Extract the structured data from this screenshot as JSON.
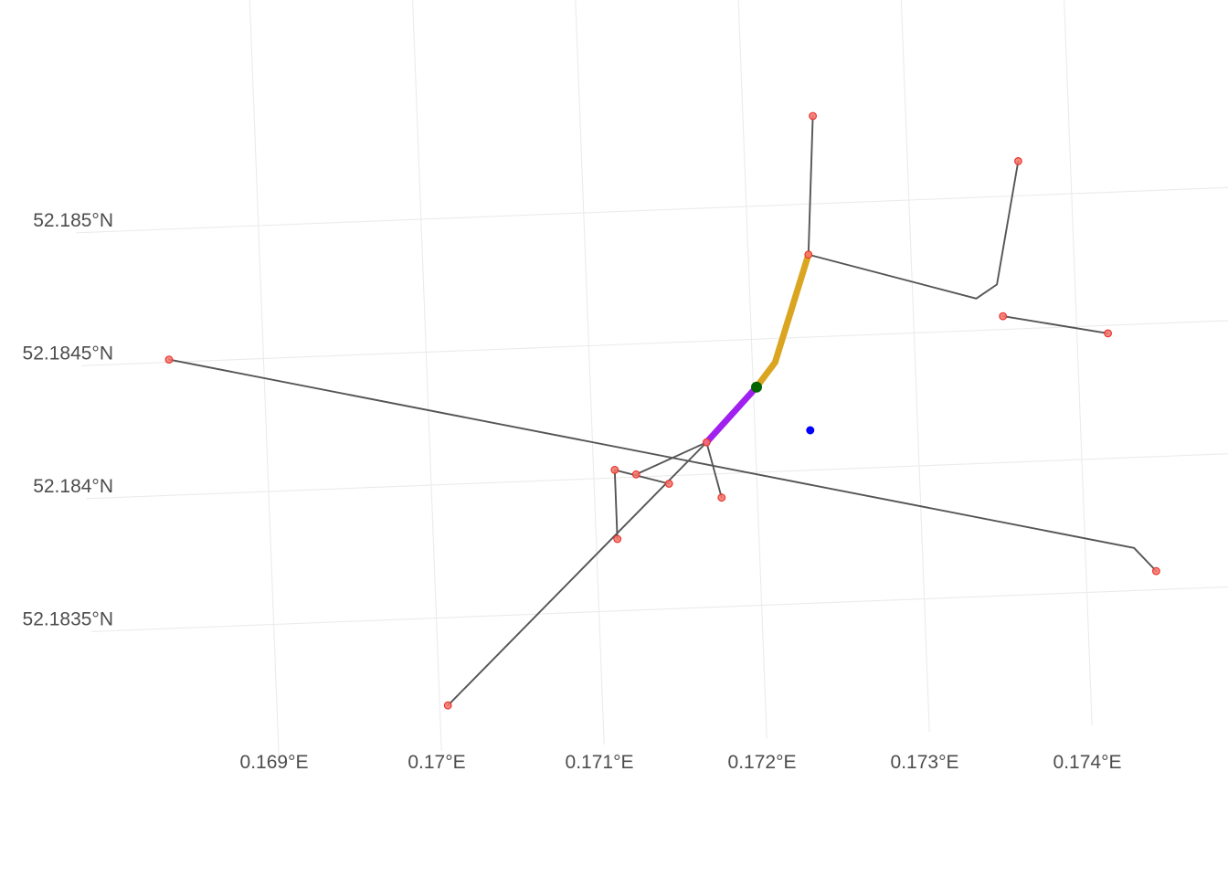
{
  "chart_data": {
    "type": "map",
    "x_axis": {
      "tick_labels": [
        "0.169°E",
        "0.17°E",
        "0.171°E",
        "0.172°E",
        "0.173°E",
        "0.174°E"
      ],
      "tick_values": [
        0.169,
        0.17,
        0.171,
        0.172,
        0.173,
        0.174
      ],
      "range": [
        0.1682,
        0.1748
      ]
    },
    "y_axis": {
      "tick_labels": [
        "52.1835°N",
        "52.184°N",
        "52.1845°N",
        "52.185°N"
      ],
      "tick_values": [
        52.1835,
        52.184,
        52.1845,
        52.185
      ],
      "range": [
        52.1829,
        52.1857
      ]
    },
    "grid": true,
    "graticule_rotation_deg": -2.2,
    "colors": {
      "edge": "#555555",
      "node_fill": "#f8766d",
      "node_stroke": "#e8332a",
      "route_purple": "#a020f0",
      "route_gold": "#daa520",
      "start_point": "#006400",
      "query_point": "#0000ff",
      "grid": "#ebebeb"
    },
    "edges": [
      [
        [
          0.16842,
          52.18451
        ],
        [
          0.1743,
          52.18366
        ],
        [
          0.17443,
          52.18357
        ]
      ],
      [
        [
          0.17005,
          52.18317
        ],
        [
          0.1717,
          52.18412
        ]
      ],
      [
        [
          0.17113,
          52.18377
        ],
        [
          0.17113,
          52.18403
        ]
      ],
      [
        [
          0.17113,
          52.18403
        ],
        [
          0.17146,
          52.18397
        ]
      ],
      [
        [
          0.17126,
          52.18401
        ],
        [
          0.1717,
          52.18412
        ]
      ],
      [
        [
          0.1717,
          52.18412
        ],
        [
          0.17178,
          52.18391
        ]
      ],
      [
        [
          0.1717,
          52.18412
        ],
        [
          0.17202,
          52.18432
        ],
        [
          0.17214,
          52.18441
        ],
        [
          0.17237,
          52.18481
        ]
      ],
      [
        [
          0.17237,
          52.18481
        ],
        [
          0.17243,
          52.18533
        ]
      ],
      [
        [
          0.17237,
          52.18481
        ],
        [
          0.17339,
          52.18462
        ],
        [
          0.17352,
          52.18467
        ],
        [
          0.17368,
          52.18513
        ]
      ],
      [
        [
          0.17355,
          52.18455
        ],
        [
          0.17419,
          52.18447
        ]
      ]
    ],
    "route_segments": [
      {
        "color": "purple",
        "points": [
          [
            0.1717,
            52.18412
          ],
          [
            0.17202,
            52.18432
          ]
        ]
      },
      {
        "color": "gold",
        "points": [
          [
            0.17202,
            52.18432
          ],
          [
            0.17214,
            52.18441
          ],
          [
            0.17237,
            52.18481
          ]
        ]
      }
    ],
    "nodes": [
      [
        0.16842,
        52.18451
      ],
      [
        0.17443,
        52.18357
      ],
      [
        0.17005,
        52.18317
      ],
      [
        0.17113,
        52.18377
      ],
      [
        0.17113,
        52.18403
      ],
      [
        0.17126,
        52.18401
      ],
      [
        0.17146,
        52.18397
      ],
      [
        0.1717,
        52.18412
      ],
      [
        0.17178,
        52.18391
      ],
      [
        0.17237,
        52.18481
      ],
      [
        0.17243,
        52.18533
      ],
      [
        0.17368,
        52.18513
      ],
      [
        0.17355,
        52.18455
      ],
      [
        0.17419,
        52.18447
      ]
    ],
    "start_point": [
      0.17202,
      52.18432
    ],
    "query_point": [
      0.17234,
      52.18415
    ]
  }
}
